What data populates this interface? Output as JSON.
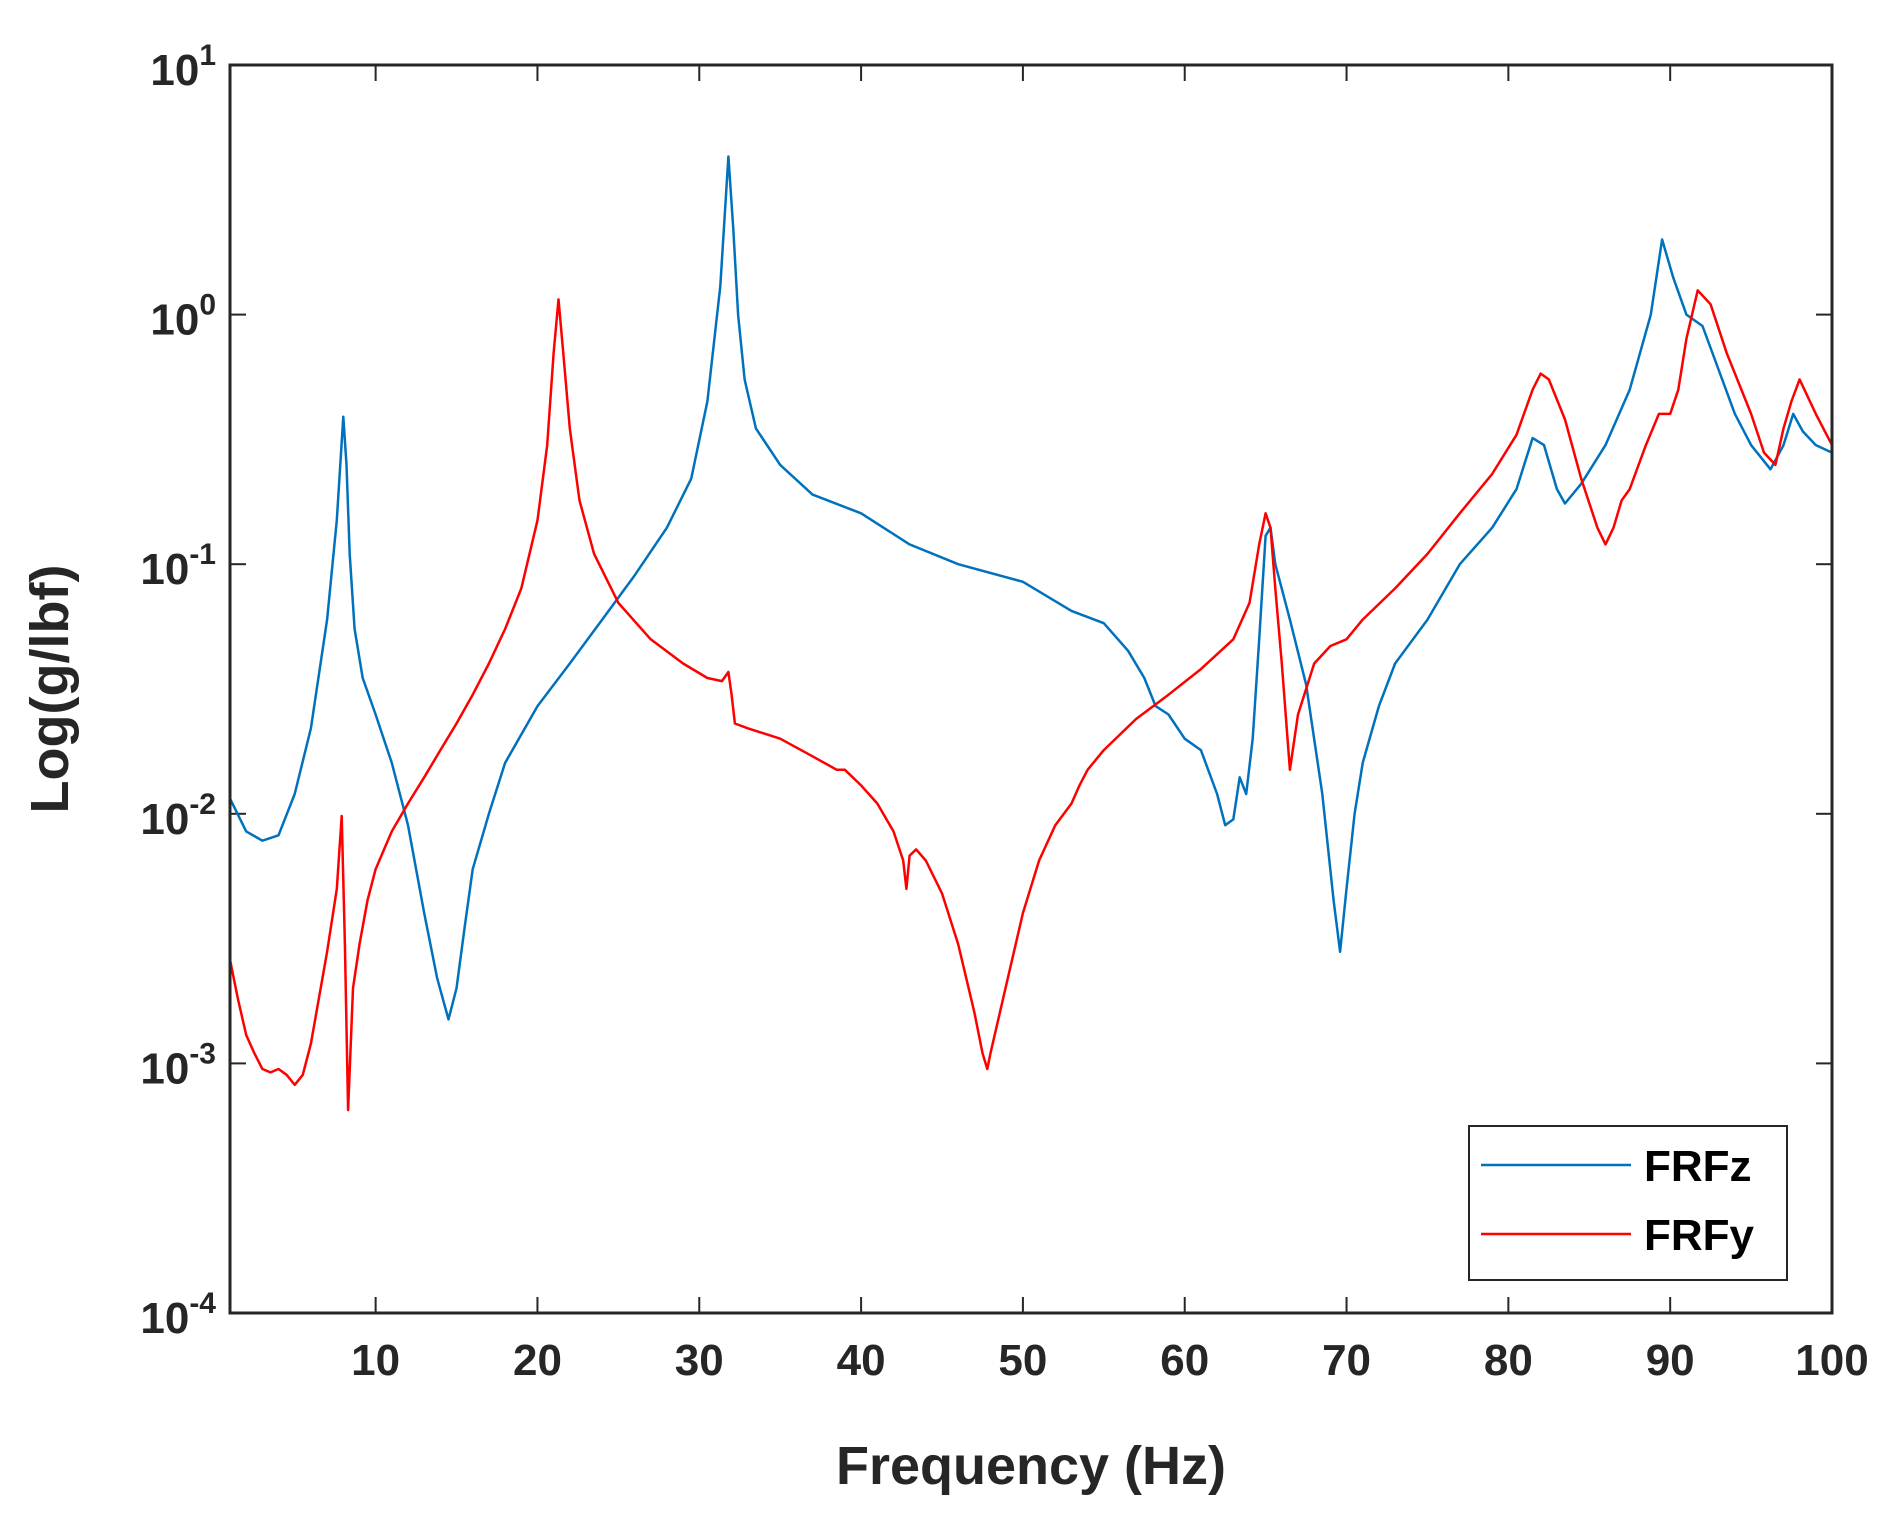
{
  "chart_data": {
    "type": "line",
    "title": "",
    "xlabel": "Frequency (Hz)",
    "ylabel": "Log(g/lbf)",
    "xlim": [
      1,
      100
    ],
    "ylim": [
      0.0001,
      10
    ],
    "yscale": "log",
    "grid": false,
    "legend_position": "bottom-right",
    "x_ticks": [
      {
        "value": 10,
        "label": "10"
      },
      {
        "value": 20,
        "label": "20"
      },
      {
        "value": 30,
        "label": "30"
      },
      {
        "value": 40,
        "label": "40"
      },
      {
        "value": 50,
        "label": "50"
      },
      {
        "value": 60,
        "label": "60"
      },
      {
        "value": 70,
        "label": "70"
      },
      {
        "value": 80,
        "label": "80"
      },
      {
        "value": 90,
        "label": "90"
      },
      {
        "value": 100,
        "label": "100"
      }
    ],
    "y_ticks": [
      {
        "value": 10,
        "base": "10",
        "exp": "1"
      },
      {
        "value": 1,
        "base": "10",
        "exp": "0"
      },
      {
        "value": 0.1,
        "base": "10",
        "exp": "-1"
      },
      {
        "value": 0.01,
        "base": "10",
        "exp": "-2"
      },
      {
        "value": 0.001,
        "base": "10",
        "exp": "-3"
      },
      {
        "value": 0.0001,
        "base": "10",
        "exp": "-4"
      }
    ],
    "series": [
      {
        "name": "FRFz",
        "color": "#0072BD",
        "x": [
          1,
          2,
          3,
          4,
          5,
          6,
          7,
          7.6,
          8,
          8.2,
          8.4,
          8.7,
          9.2,
          10,
          11,
          12,
          13,
          13.8,
          14.5,
          15,
          15.5,
          16,
          17,
          18,
          20,
          22,
          24,
          26,
          28,
          29.5,
          30.5,
          31.3,
          31.8,
          32.1,
          32.4,
          32.8,
          33.5,
          35,
          37,
          40,
          43,
          46,
          50,
          53,
          55,
          56.5,
          57.5,
          58.2,
          59,
          60,
          61,
          62,
          62.5,
          63,
          63.4,
          63.8,
          64.2,
          64.6,
          65,
          65.3,
          65.6,
          66.5,
          67.5,
          68.5,
          69.2,
          69.6,
          70,
          70.5,
          71,
          72,
          73,
          75,
          77,
          79,
          80.5,
          81.5,
          82.2,
          83,
          83.5,
          84.5,
          86,
          87.5,
          88.8,
          89.5,
          90.2,
          91,
          92,
          93,
          94,
          95,
          96.2,
          97,
          97.6,
          98.2,
          99,
          100
        ],
        "y": [
          0.0115,
          0.0085,
          0.0078,
          0.0082,
          0.012,
          0.022,
          0.06,
          0.15,
          0.39,
          0.25,
          0.11,
          0.055,
          0.035,
          0.025,
          0.016,
          0.009,
          0.004,
          0.0022,
          0.0015,
          0.002,
          0.0035,
          0.006,
          0.01,
          0.016,
          0.027,
          0.04,
          0.06,
          0.09,
          0.14,
          0.22,
          0.45,
          1.3,
          4.3,
          2.2,
          1.0,
          0.55,
          0.35,
          0.25,
          0.19,
          0.16,
          0.12,
          0.1,
          0.085,
          0.065,
          0.058,
          0.045,
          0.035,
          0.027,
          0.025,
          0.02,
          0.018,
          0.012,
          0.009,
          0.0095,
          0.014,
          0.012,
          0.02,
          0.05,
          0.13,
          0.14,
          0.1,
          0.06,
          0.033,
          0.012,
          0.0045,
          0.0028,
          0.005,
          0.01,
          0.016,
          0.027,
          0.04,
          0.06,
          0.1,
          0.14,
          0.2,
          0.32,
          0.3,
          0.2,
          0.175,
          0.21,
          0.3,
          0.5,
          1.0,
          2.0,
          1.4,
          1.0,
          0.9,
          0.6,
          0.4,
          0.3,
          0.24,
          0.3,
          0.4,
          0.34,
          0.3,
          0.28
        ]
      },
      {
        "name": "FRFy",
        "color": "#FF0000",
        "x": [
          1,
          1.5,
          2,
          2.5,
          3,
          3.5,
          4,
          4.5,
          5,
          5.5,
          6,
          7,
          7.6,
          7.9,
          8.1,
          8.3,
          8.6,
          9,
          9.5,
          10,
          11,
          12,
          13,
          14,
          15,
          16,
          17,
          18,
          19,
          20,
          20.6,
          21,
          21.3,
          21.6,
          22,
          22.6,
          23.5,
          25,
          27,
          29,
          30.5,
          31.4,
          31.8,
          32,
          32.2,
          33,
          35,
          37,
          38.5,
          39,
          40,
          41,
          42,
          42.6,
          42.8,
          43,
          43.4,
          44,
          45,
          46,
          47,
          47.5,
          47.8,
          48,
          49,
          50,
          51,
          52,
          53,
          53.5,
          54,
          55,
          57,
          59,
          61,
          63,
          64,
          64.6,
          65,
          65.3,
          65.6,
          66,
          66.5,
          67,
          68,
          69,
          70,
          71,
          73,
          75,
          77,
          79,
          80.5,
          81.5,
          82,
          82.5,
          83.5,
          84.5,
          85.5,
          86,
          86.5,
          87,
          87.5,
          88.5,
          89.3,
          90,
          90.5,
          91,
          91.7,
          92.5,
          93.5,
          95,
          95.8,
          96.5,
          97,
          97.5,
          98,
          99,
          100
        ],
        "y": [
          0.0026,
          0.0018,
          0.0013,
          0.0011,
          0.00095,
          0.00092,
          0.00095,
          0.0009,
          0.00082,
          0.0009,
          0.0012,
          0.0028,
          0.005,
          0.0098,
          0.003,
          0.00065,
          0.002,
          0.003,
          0.0045,
          0.006,
          0.0085,
          0.011,
          0.014,
          0.018,
          0.023,
          0.03,
          0.04,
          0.055,
          0.08,
          0.15,
          0.3,
          0.7,
          1.15,
          0.7,
          0.35,
          0.18,
          0.11,
          0.07,
          0.05,
          0.04,
          0.035,
          0.034,
          0.037,
          0.03,
          0.023,
          0.022,
          0.02,
          0.017,
          0.015,
          0.015,
          0.013,
          0.011,
          0.0085,
          0.0065,
          0.005,
          0.0068,
          0.0072,
          0.0065,
          0.0048,
          0.003,
          0.0016,
          0.0011,
          0.00095,
          0.0011,
          0.0021,
          0.004,
          0.0065,
          0.009,
          0.011,
          0.013,
          0.015,
          0.018,
          0.024,
          0.03,
          0.038,
          0.05,
          0.07,
          0.12,
          0.16,
          0.14,
          0.08,
          0.04,
          0.015,
          0.025,
          0.04,
          0.047,
          0.05,
          0.06,
          0.08,
          0.11,
          0.16,
          0.23,
          0.33,
          0.5,
          0.58,
          0.55,
          0.38,
          0.22,
          0.14,
          0.12,
          0.14,
          0.18,
          0.2,
          0.3,
          0.4,
          0.4,
          0.5,
          0.8,
          1.25,
          1.1,
          0.7,
          0.4,
          0.28,
          0.25,
          0.35,
          0.45,
          0.55,
          0.4,
          0.3
        ]
      }
    ]
  }
}
